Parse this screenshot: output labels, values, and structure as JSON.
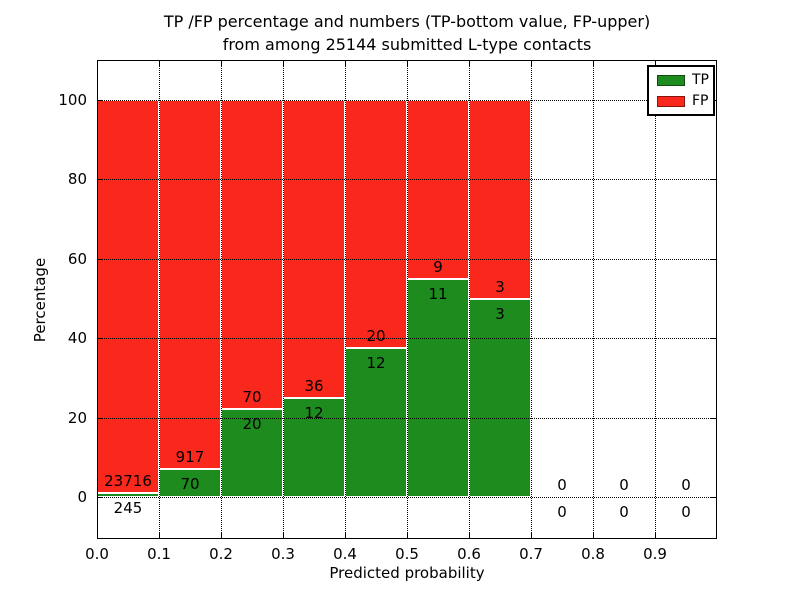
{
  "title": {
    "line1": "TP /FP percentage and numbers (TP-bottom value, FP-upper)",
    "line2": "from among 25144 submitted L-type contacts"
  },
  "legend": {
    "items": [
      {
        "label": "TP",
        "color": "#1e8b1e"
      },
      {
        "label": "FP",
        "color": "#f9271c"
      }
    ]
  },
  "chart_data": {
    "type": "bar",
    "stacked": true,
    "title": "TP /FP percentage and numbers (TP-bottom value, FP-upper) from among 25144 submitted L-type contacts",
    "xlabel": "Predicted probability",
    "ylabel": "Percentage",
    "total_submitted_contacts": 25144,
    "bins": [
      "0.0-0.1",
      "0.1-0.2",
      "0.2-0.3",
      "0.3-0.4",
      "0.4-0.5",
      "0.5-0.6",
      "0.6-0.7",
      "0.7-0.8",
      "0.8-0.9",
      "0.9-1.0"
    ],
    "series": [
      {
        "name": "TP",
        "color": "#1e8b1e",
        "counts": [
          245,
          70,
          20,
          12,
          12,
          11,
          3,
          0,
          0,
          0
        ]
      },
      {
        "name": "FP",
        "color": "#f9271c",
        "counts": [
          23716,
          917,
          70,
          36,
          20,
          9,
          3,
          0,
          0,
          0
        ]
      }
    ],
    "tp_percent": [
      1.02,
      7.09,
      22.22,
      25.0,
      37.5,
      55.0,
      50.0,
      null,
      null,
      null
    ],
    "xticks": [
      "0.0",
      "0.1",
      "0.2",
      "0.3",
      "0.4",
      "0.5",
      "0.6",
      "0.7",
      "0.8",
      "0.9"
    ],
    "yticks": [
      0,
      20,
      40,
      60,
      80,
      100
    ],
    "xlim": [
      0.0,
      1.0
    ],
    "ylim": [
      -10.6,
      110.1
    ],
    "grid": "dotted-black-over-bars",
    "bar_edge_color": "#ffffff",
    "legend_position": "upper right"
  }
}
